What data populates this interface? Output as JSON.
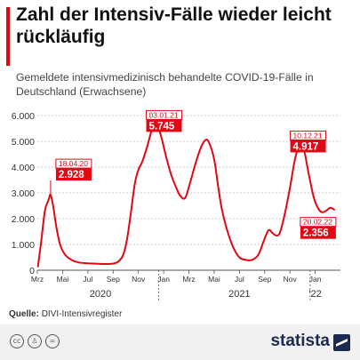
{
  "title": "Zahl der Intensiv-Fälle wieder leicht rückläufig",
  "subtitle": "Gemeldete intensivmedizinisch behandelte COVID-19-Fälle in Deutschland (Erwachsene)",
  "source_label": "Quelle:",
  "source_text": "DIVI-Intensivregister",
  "brand": "statista",
  "colors": {
    "accent": "#e30613",
    "line": "#e30613",
    "grid": "#bdbdbd",
    "brand": "#1b2a4e"
  },
  "icons": [
    "cc-icon",
    "by-icon",
    "nd-icon",
    "statista-logo-icon"
  ],
  "chart_data": {
    "type": "line",
    "title": "",
    "xlabel": "",
    "ylabel": "",
    "ylim": [
      0,
      6000
    ],
    "yticks": [
      0,
      1000,
      2000,
      3000,
      4000,
      5000,
      6000
    ],
    "ytick_labels": [
      "0",
      "1.000",
      "2.000",
      "3.000",
      "4.000",
      "5.000",
      "6.000"
    ],
    "month_ticks": [
      {
        "label": "Mrz",
        "m": 0
      },
      {
        "label": "Mai",
        "m": 2
      },
      {
        "label": "Jul",
        "m": 4
      },
      {
        "label": "Sep",
        "m": 6
      },
      {
        "label": "Nov",
        "m": 8
      },
      {
        "label": "Jan",
        "m": 10
      },
      {
        "label": "Mrz",
        "m": 12
      },
      {
        "label": "Mai",
        "m": 14
      },
      {
        "label": "Jul",
        "m": 16
      },
      {
        "label": "Sep",
        "m": 18
      },
      {
        "label": "Nov",
        "m": 20
      },
      {
        "label": "Jan",
        "m": 22
      }
    ],
    "year_labels": [
      {
        "label": "2020",
        "m": 5
      },
      {
        "label": "2021",
        "m": 16
      },
      {
        "label": "'22",
        "m": 22
      }
    ],
    "year_separators": [
      9.6,
      21.6
    ],
    "series": [
      {
        "points": [
          [
            0.05,
            150
          ],
          [
            0.3,
            1100
          ],
          [
            0.6,
            2300
          ],
          [
            0.9,
            2750
          ],
          [
            1.05,
            2928
          ],
          [
            1.25,
            2500
          ],
          [
            1.5,
            1700
          ],
          [
            1.8,
            1000
          ],
          [
            2.2,
            600
          ],
          [
            2.7,
            400
          ],
          [
            3.3,
            300
          ],
          [
            4,
            270
          ],
          [
            4.8,
            250
          ],
          [
            5.5,
            240
          ],
          [
            6,
            260
          ],
          [
            6.4,
            330
          ],
          [
            6.8,
            600
          ],
          [
            7.1,
            1200
          ],
          [
            7.4,
            2200
          ],
          [
            7.7,
            3300
          ],
          [
            8,
            3900
          ],
          [
            8.3,
            4200
          ],
          [
            8.7,
            4800
          ],
          [
            9.1,
            5500
          ],
          [
            9.4,
            5745
          ],
          [
            9.8,
            5200
          ],
          [
            10.2,
            4400
          ],
          [
            10.6,
            3700
          ],
          [
            11,
            3200
          ],
          [
            11.3,
            2900
          ],
          [
            11.7,
            2800
          ],
          [
            12.1,
            3400
          ],
          [
            12.5,
            4100
          ],
          [
            12.9,
            4700
          ],
          [
            13.3,
            5050
          ],
          [
            13.6,
            4950
          ],
          [
            14,
            4300
          ],
          [
            14.3,
            3300
          ],
          [
            14.6,
            2400
          ],
          [
            15,
            1600
          ],
          [
            15.5,
            900
          ],
          [
            16,
            500
          ],
          [
            16.5,
            400
          ],
          [
            17,
            400
          ],
          [
            17.5,
            600
          ],
          [
            17.9,
            1100
          ],
          [
            18.3,
            1550
          ],
          [
            18.6,
            1450
          ],
          [
            18.9,
            1350
          ],
          [
            19.2,
            1450
          ],
          [
            19.6,
            2200
          ],
          [
            20,
            3200
          ],
          [
            20.4,
            4300
          ],
          [
            20.8,
            4917
          ],
          [
            21.1,
            4700
          ],
          [
            21.5,
            3700
          ],
          [
            21.9,
            2800
          ],
          [
            22.3,
            2350
          ],
          [
            22.6,
            2250
          ],
          [
            22.9,
            2320
          ],
          [
            23.2,
            2420
          ],
          [
            23.5,
            2356
          ]
        ]
      }
    ],
    "annotations": [
      {
        "date": "18.04.20",
        "value": "2.928",
        "m": 1.05,
        "y": 2928
      },
      {
        "date": "03.01.21",
        "value": "5.745",
        "m": 9.4,
        "y": 5745
      },
      {
        "date": "10.12.21",
        "value": "4.917",
        "m": 20.8,
        "y": 4917
      },
      {
        "date": "20.02.22",
        "value": "2.356",
        "m": 23.5,
        "y": 2356
      }
    ]
  }
}
